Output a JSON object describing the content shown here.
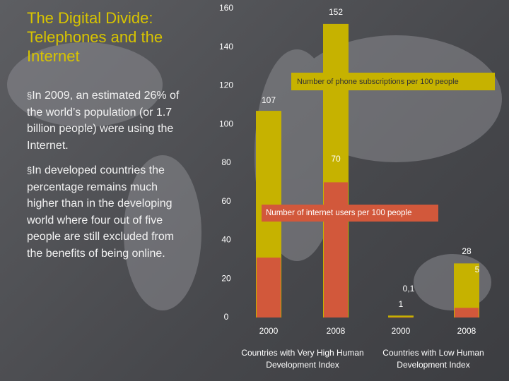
{
  "title": "The Digital Divide: Telephones and the Internet",
  "bullets": [
    "In 2009, an estimated 26% of the world’s population (or 1.7 billion people) were using the Internet.",
    "In developed countries the percentage remains much higher than in the developing world where four out of five people are still excluded from the benefits of being online."
  ],
  "chart_data": {
    "type": "bar",
    "categories": [
      "2000",
      "2008",
      "2000",
      "2008"
    ],
    "groups": [
      "Countries with Very High Human Development Index",
      "Countries with Low Human Development Index"
    ],
    "series": [
      {
        "name": "Number of phone subscriptions per 100 people",
        "color": "#c6b200",
        "values": [
          107,
          152,
          1,
          28
        ]
      },
      {
        "name": "Number of internet users per 100 people",
        "color": "#d2583b",
        "values": [
          31,
          70,
          0.1,
          5
        ],
        "value_labels": [
          null,
          "70",
          "0,1",
          "5"
        ]
      }
    ],
    "ylim": [
      0,
      160
    ],
    "yticks": [
      0,
      20,
      40,
      60,
      80,
      100,
      120,
      140,
      160
    ]
  }
}
